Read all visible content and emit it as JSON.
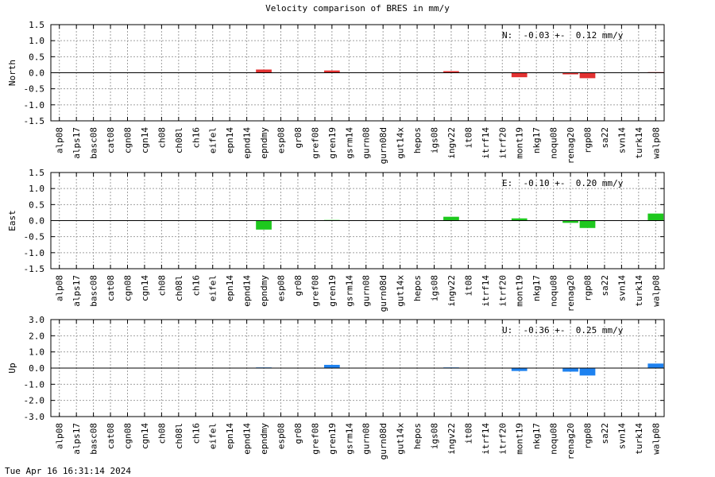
{
  "title": "Velocity comparison of BRES in mm/y",
  "timestamp": "Tue Apr 16 16:31:14 2024",
  "chart_data": [
    {
      "type": "bar",
      "ylabel": "North",
      "summary": "N:  -0.03 +-  0.12 mm/y",
      "color": "#e23232",
      "ylim": [
        -1.5,
        1.5
      ],
      "yticks": [
        "-1.5",
        "-1.0",
        "-0.5",
        "0.0",
        "0.5",
        "1.0",
        "1.5"
      ],
      "categories": [
        "alp08",
        "alps17",
        "basc08",
        "cat08",
        "cgn08",
        "cgn14",
        "ch08",
        "ch08l",
        "ch16",
        "eifel",
        "epn14",
        "epnd14",
        "epndmy",
        "esp08",
        "gr08",
        "gref08",
        "gren19",
        "gsrm14",
        "gurn08",
        "gurn08d",
        "gut14x",
        "hepos",
        "igs08",
        "ingv22",
        "it08",
        "itrf14",
        "itrf20",
        "mont19",
        "nkg17",
        "noqu08",
        "renag20",
        "rgp08",
        "sa22",
        "svn14",
        "turk14",
        "walp08"
      ],
      "values": [
        0,
        0,
        0,
        0,
        0,
        0,
        0,
        0,
        0,
        0,
        0,
        0,
        0.1,
        0,
        0,
        0,
        0.07,
        0,
        0,
        0,
        0,
        0,
        0,
        0.05,
        0,
        0,
        0,
        -0.14,
        0,
        0,
        -0.05,
        -0.17,
        0,
        0,
        0,
        0.02
      ]
    },
    {
      "type": "bar",
      "ylabel": "East",
      "summary": "E:  -0.10 +-  0.20 mm/y",
      "color": "#1ec81e",
      "ylim": [
        -1.5,
        1.5
      ],
      "yticks": [
        "-1.5",
        "-1.0",
        "-0.5",
        "0.0",
        "0.5",
        "1.0",
        "1.5"
      ],
      "categories": [
        "alp08",
        "alps17",
        "basc08",
        "cat08",
        "cgn08",
        "cgn14",
        "ch08",
        "ch08l",
        "ch16",
        "eifel",
        "epn14",
        "epnd14",
        "epndmy",
        "esp08",
        "gr08",
        "gref08",
        "gren19",
        "gsrm14",
        "gurn08",
        "gurn08d",
        "gut14x",
        "hepos",
        "igs08",
        "ingv22",
        "it08",
        "itrf14",
        "itrf20",
        "mont19",
        "nkg17",
        "noqu08",
        "renag20",
        "rgp08",
        "sa22",
        "svn14",
        "turk14",
        "walp08"
      ],
      "values": [
        0,
        0,
        0,
        0,
        0,
        0,
        0,
        0,
        0,
        0,
        0,
        0,
        -0.28,
        0,
        0,
        0,
        0.02,
        0,
        0,
        0,
        0,
        0,
        0,
        0.12,
        0,
        0,
        0,
        0.07,
        0,
        0,
        -0.07,
        -0.23,
        0,
        0,
        0,
        0.22
      ]
    },
    {
      "type": "bar",
      "ylabel": "Up",
      "summary": "U:  -0.36 +-  0.25 mm/y",
      "color": "#1e82f0",
      "ylim": [
        -3.0,
        3.0
      ],
      "yticks": [
        "-3.0",
        "-2.0",
        "-1.0",
        "0.0",
        "1.0",
        "2.0",
        "3.0"
      ],
      "categories": [
        "alp08",
        "alps17",
        "basc08",
        "cat08",
        "cgn08",
        "cgn14",
        "ch08",
        "ch08l",
        "ch16",
        "eifel",
        "epn14",
        "epnd14",
        "epndmy",
        "esp08",
        "gr08",
        "gref08",
        "gren19",
        "gsrm14",
        "gurn08",
        "gurn08d",
        "gut14x",
        "hepos",
        "igs08",
        "ingv22",
        "it08",
        "itrf14",
        "itrf20",
        "mont19",
        "nkg17",
        "noqu08",
        "renag20",
        "rgp08",
        "sa22",
        "svn14",
        "turk14",
        "walp08"
      ],
      "values": [
        0,
        0,
        0,
        0,
        0,
        0,
        0,
        0,
        0,
        0,
        0,
        0,
        0.04,
        0,
        0,
        0,
        0.2,
        0,
        0,
        0,
        0,
        0,
        0,
        0.04,
        0,
        0,
        0,
        -0.18,
        0,
        0,
        -0.22,
        -0.46,
        0,
        0,
        0,
        0.28
      ]
    }
  ]
}
